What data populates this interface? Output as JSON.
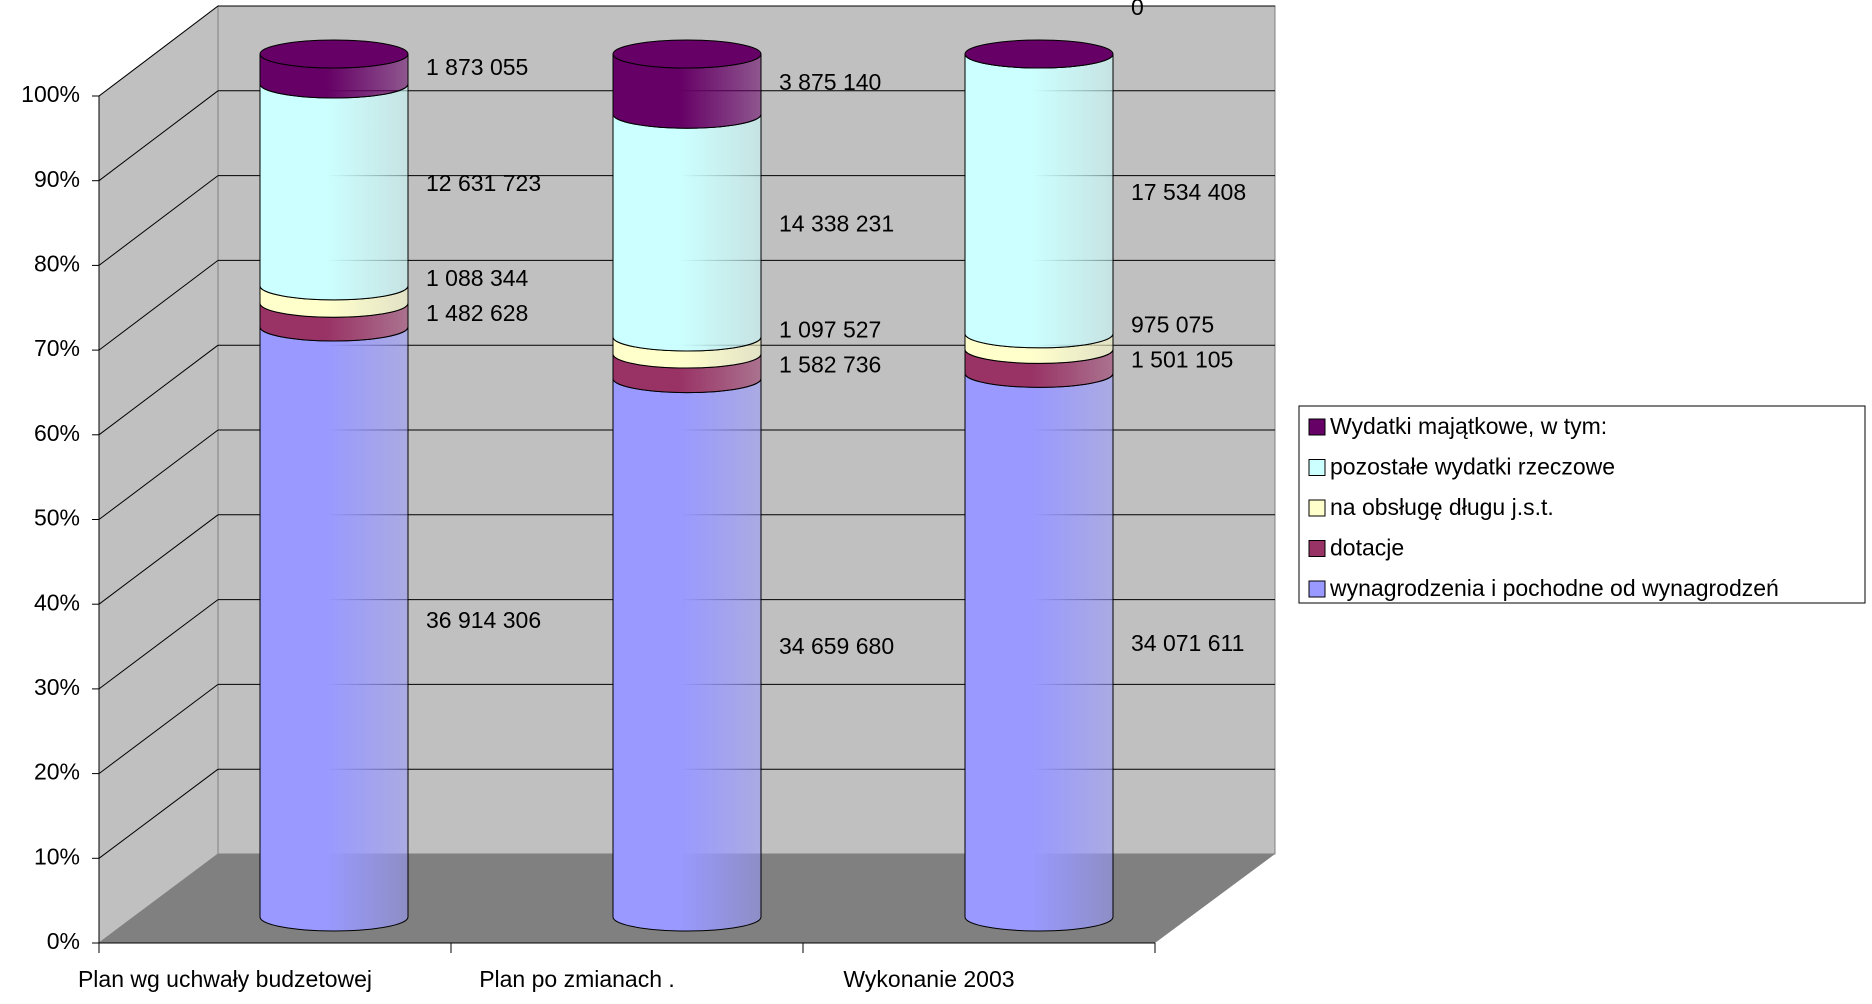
{
  "chart_data": {
    "type": "bar",
    "stacked": "percent",
    "categories": [
      "Plan wg uchwały budzetowej",
      "Plan po zmianach .",
      "Wykonanie 2003"
    ],
    "series": [
      {
        "name": " wynagrodzenia i pochodne od wynagrodzeń",
        "color": "#9999ff",
        "values": [
          36914306,
          34659680,
          34071611
        ],
        "value_labels": [
          "36 914 306",
          "34 659 680",
          "34 071 611"
        ]
      },
      {
        "name": "dotacje",
        "color": "#993366",
        "values": [
          1482628,
          1582736,
          1501105
        ],
        "value_labels": [
          "1 482 628",
          "1 582 736",
          "1 501 105"
        ]
      },
      {
        "name": "na obsługę długu j.s.t.",
        "color": "#ffffcc",
        "values": [
          1088344,
          1097527,
          975075
        ],
        "value_labels": [
          "1 088 344",
          "1 097 527",
          "975 075"
        ]
      },
      {
        "name": "pozostałe wydatki rzeczowe",
        "color": "#ccffff",
        "values": [
          12631723,
          14338231,
          17534408
        ],
        "value_labels": [
          "12 631 723",
          "14 338 231",
          "17 534 408"
        ]
      },
      {
        "name": "Wydatki majątkowe, w tym:",
        "color": "#660066",
        "values": [
          1873055,
          3875140,
          0
        ],
        "value_labels": [
          "1 873 055",
          "3 875 140",
          "0"
        ]
      }
    ],
    "ylim": [
      0,
      100
    ],
    "yticks": [
      {
        "value": 0,
        "label": "0%"
      },
      {
        "value": 10,
        "label": "10%"
      },
      {
        "value": 20,
        "label": "20%"
      },
      {
        "value": 30,
        "label": "30%"
      },
      {
        "value": 40,
        "label": "40%"
      },
      {
        "value": 50,
        "label": "50%"
      },
      {
        "value": 60,
        "label": "60%"
      },
      {
        "value": 70,
        "label": "70%"
      },
      {
        "value": 80,
        "label": "80%"
      },
      {
        "value": 90,
        "label": "90%"
      },
      {
        "value": 100,
        "label": "100%"
      }
    ],
    "grid": true,
    "legend": "right"
  }
}
